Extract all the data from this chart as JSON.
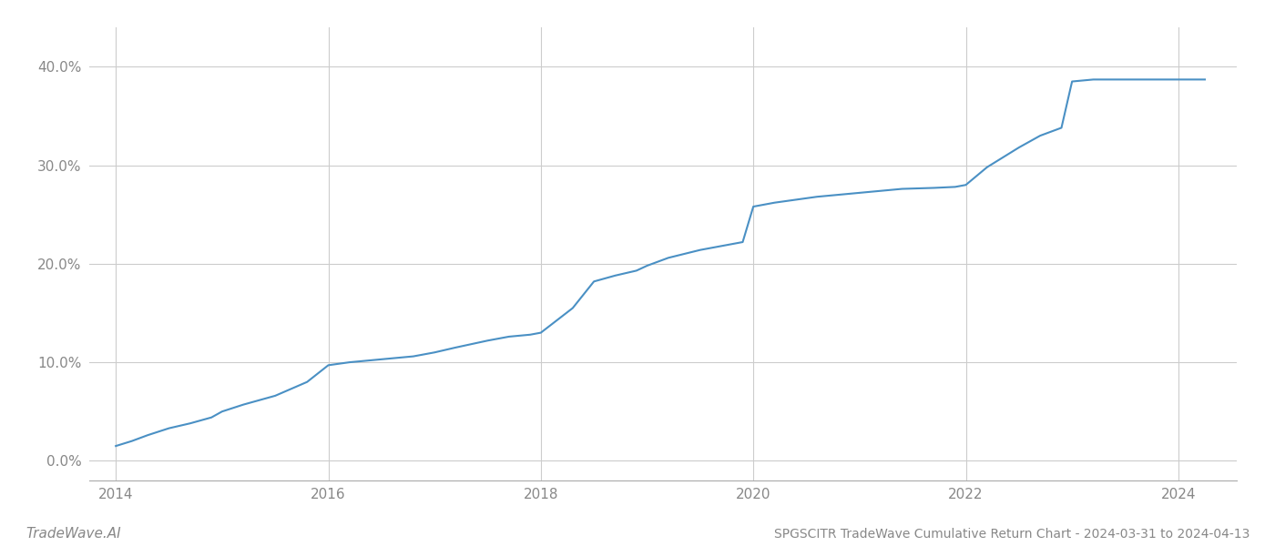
{
  "title_bottom": "SPGSCITR TradeWave Cumulative Return Chart - 2024-03-31 to 2024-04-13",
  "watermark": "TradeWave.AI",
  "line_color": "#4a90c4",
  "background_color": "#ffffff",
  "grid_color": "#cccccc",
  "x_years": [
    2014,
    2016,
    2018,
    2020,
    2022,
    2024
  ],
  "xlim": [
    2013.75,
    2024.55
  ],
  "ylim": [
    -0.02,
    0.44
  ],
  "yticks": [
    0.0,
    0.1,
    0.2,
    0.3,
    0.4
  ],
  "x_data": [
    2014.0,
    2014.15,
    2014.3,
    2014.5,
    2014.7,
    2014.9,
    2015.0,
    2015.2,
    2015.5,
    2015.8,
    2016.0,
    2016.2,
    2016.4,
    2016.6,
    2016.8,
    2017.0,
    2017.2,
    2017.5,
    2017.7,
    2017.9,
    2018.0,
    2018.3,
    2018.5,
    2018.7,
    2018.9,
    2019.0,
    2019.2,
    2019.5,
    2019.7,
    2019.9,
    2020.0,
    2020.2,
    2020.4,
    2020.6,
    2020.8,
    2021.0,
    2021.2,
    2021.4,
    2021.7,
    2021.9,
    2022.0,
    2022.2,
    2022.5,
    2022.7,
    2022.9,
    2023.0,
    2023.2,
    2023.5,
    2023.7,
    2023.9,
    2024.0,
    2024.25
  ],
  "y_data": [
    0.015,
    0.02,
    0.026,
    0.033,
    0.038,
    0.044,
    0.05,
    0.057,
    0.066,
    0.08,
    0.097,
    0.1,
    0.102,
    0.104,
    0.106,
    0.11,
    0.115,
    0.122,
    0.126,
    0.128,
    0.13,
    0.155,
    0.182,
    0.188,
    0.193,
    0.198,
    0.206,
    0.214,
    0.218,
    0.222,
    0.258,
    0.262,
    0.265,
    0.268,
    0.27,
    0.272,
    0.274,
    0.276,
    0.277,
    0.278,
    0.28,
    0.298,
    0.318,
    0.33,
    0.338,
    0.385,
    0.387,
    0.387,
    0.387,
    0.387,
    0.387,
    0.387
  ],
  "line_width": 1.5,
  "font_family": "DejaVu Sans",
  "title_fontsize": 10,
  "watermark_fontsize": 11,
  "tick_fontsize": 11,
  "tick_color": "#888888"
}
